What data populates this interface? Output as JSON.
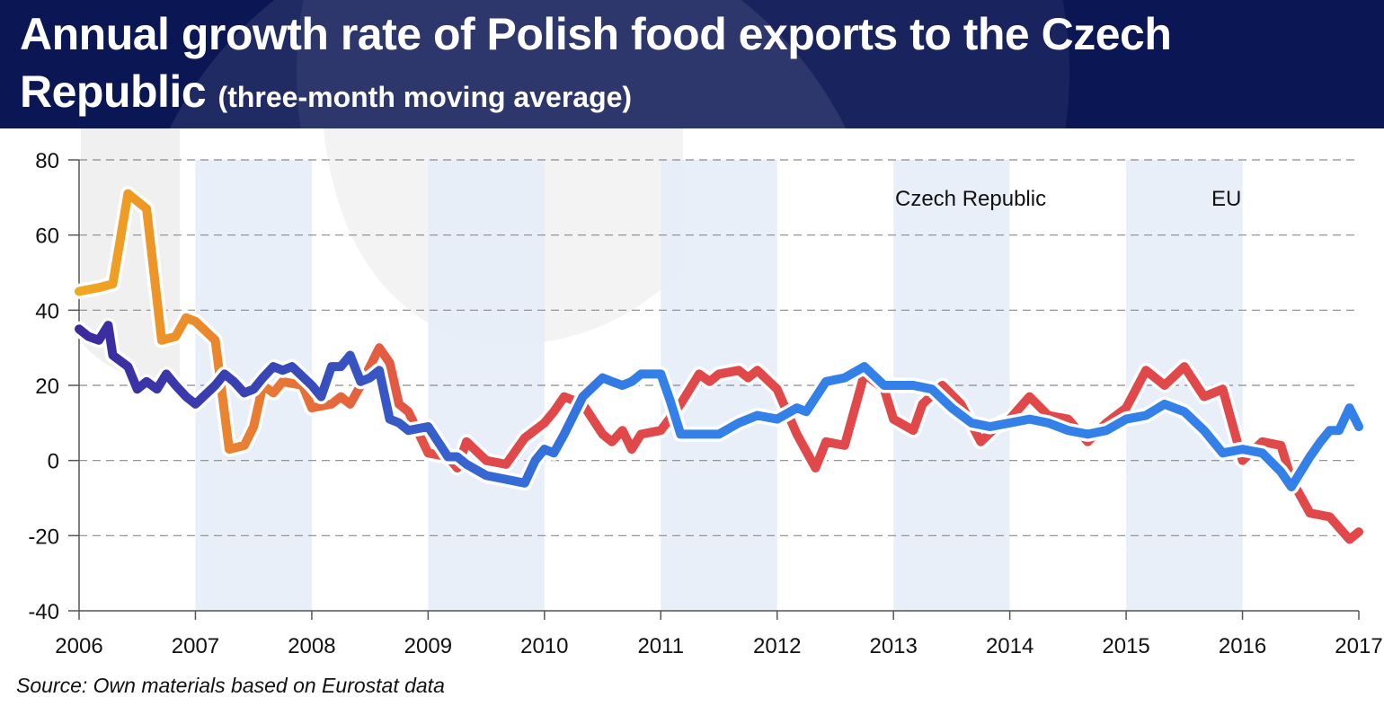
{
  "title": "Annual growth rate of Polish food exports to the Czech Republic",
  "subtitle": "(three-month moving average)",
  "source": "Source: Own materials based on Eurostat data",
  "colors": {
    "header_bg": "#0b1654",
    "band": "#e4ecf8",
    "czech_start": "#f0a81f",
    "czech_end": "#e0484a",
    "eu_start": "#3b2a9e",
    "eu_end": "#3380e8"
  },
  "chart_data": {
    "type": "line",
    "title": "Annual growth rate of Polish food exports to the Czech Republic",
    "subtitle": "(three-month moving average)",
    "xlabel": "",
    "ylabel": "",
    "xlim": [
      2006,
      2017
    ],
    "ylim": [
      -40,
      80
    ],
    "x_ticks": [
      "2006",
      "2007",
      "2008",
      "2009",
      "2010",
      "2011",
      "2012",
      "2013",
      "2014",
      "2015",
      "2016",
      "2017"
    ],
    "y_ticks": [
      "80",
      "60",
      "40",
      "20",
      "0",
      "-20",
      "-40"
    ],
    "shaded_years": [
      [
        2007,
        2008
      ],
      [
        2009,
        2010
      ],
      [
        2011,
        2012
      ],
      [
        2013,
        2014
      ],
      [
        2015,
        2016
      ]
    ],
    "grid": "horizontal dashed",
    "legend_position": "top-right",
    "series": [
      {
        "name": "Czech Republic",
        "x": [
          2006.0,
          2006.17,
          2006.29,
          2006.42,
          2006.5,
          2006.58,
          2006.71,
          2006.83,
          2006.92,
          2007.0,
          2007.17,
          2007.29,
          2007.42,
          2007.5,
          2007.58,
          2007.67,
          2007.75,
          2007.92,
          2008.0,
          2008.17,
          2008.25,
          2008.33,
          2008.42,
          2008.58,
          2008.67,
          2008.75,
          2008.83,
          2009.0,
          2009.17,
          2009.25,
          2009.33,
          2009.5,
          2009.67,
          2009.83,
          2010.0,
          2010.08,
          2010.17,
          2010.33,
          2010.5,
          2010.58,
          2010.67,
          2010.75,
          2010.83,
          2011.0,
          2011.17,
          2011.33,
          2011.42,
          2011.5,
          2011.67,
          2011.75,
          2011.83,
          2012.0,
          2012.17,
          2012.33,
          2012.42,
          2012.58,
          2012.75,
          2012.92,
          2013.0,
          2013.17,
          2013.25,
          2013.42,
          2013.58,
          2013.75,
          2013.92,
          2014.0,
          2014.17,
          2014.33,
          2014.5,
          2014.67,
          2014.83,
          2015.0,
          2015.17,
          2015.33,
          2015.5,
          2015.67,
          2015.83,
          2016.0,
          2016.17,
          2016.33,
          2016.42,
          2016.58,
          2016.75,
          2016.92,
          2017.0
        ],
        "values": [
          45,
          46,
          47,
          71,
          69,
          67,
          32,
          33,
          38,
          37,
          32,
          3,
          4,
          9,
          20,
          18,
          21,
          20,
          14,
          15,
          17,
          15,
          20,
          30,
          26,
          15,
          13,
          2,
          1,
          -2,
          5,
          0,
          -1,
          6,
          10,
          13,
          17,
          15,
          7,
          5,
          8,
          3,
          7,
          8,
          15,
          23,
          21,
          23,
          24,
          22,
          24,
          19,
          7,
          -2,
          5,
          4,
          23,
          19,
          11,
          8,
          15,
          20,
          15,
          5,
          10,
          11,
          17,
          12,
          11,
          5,
          10,
          14,
          24,
          20,
          25,
          17,
          19,
          0,
          5,
          4,
          -5,
          -14,
          -15,
          -21,
          -19
        ]
      },
      {
        "name": "EU",
        "x": [
          2006.0,
          2006.08,
          2006.17,
          2006.25,
          2006.29,
          2006.42,
          2006.5,
          2006.58,
          2006.67,
          2006.75,
          2006.83,
          2006.92,
          2007.0,
          2007.17,
          2007.25,
          2007.33,
          2007.42,
          2007.5,
          2007.58,
          2007.67,
          2007.75,
          2007.83,
          2008.0,
          2008.08,
          2008.17,
          2008.25,
          2008.33,
          2008.42,
          2008.5,
          2008.58,
          2008.67,
          2008.75,
          2008.83,
          2009.0,
          2009.17,
          2009.25,
          2009.33,
          2009.5,
          2009.67,
          2009.83,
          2009.92,
          2010.0,
          2010.08,
          2010.17,
          2010.33,
          2010.5,
          2010.58,
          2010.67,
          2010.75,
          2010.83,
          2011.0,
          2011.08,
          2011.17,
          2011.33,
          2011.42,
          2011.5,
          2011.67,
          2011.83,
          2012.0,
          2012.17,
          2012.25,
          2012.42,
          2012.58,
          2012.75,
          2012.92,
          2013.0,
          2013.17,
          2013.33,
          2013.5,
          2013.67,
          2013.83,
          2014.0,
          2014.17,
          2014.33,
          2014.5,
          2014.67,
          2014.83,
          2015.0,
          2015.17,
          2015.33,
          2015.5,
          2015.67,
          2015.83,
          2016.0,
          2016.17,
          2016.33,
          2016.42,
          2016.58,
          2016.67,
          2016.75,
          2016.83,
          2016.92,
          2017.0
        ],
        "values": [
          35,
          33,
          32,
          36,
          28,
          25,
          19,
          21,
          19,
          23,
          20,
          17,
          15,
          20,
          23,
          21,
          18,
          19,
          22,
          25,
          24,
          25,
          20,
          17,
          25,
          25,
          28,
          21,
          22,
          24,
          11,
          10,
          8,
          9,
          1,
          1,
          -1,
          -4,
          -5,
          -6,
          0,
          3,
          2,
          7,
          17,
          22,
          21,
          20,
          21,
          23,
          23,
          16,
          7,
          7,
          7,
          7,
          10,
          12,
          11,
          14,
          13,
          21,
          22,
          25,
          20,
          20,
          20,
          19,
          14,
          10,
          9,
          10,
          11,
          10,
          8,
          7,
          8,
          11,
          12,
          15,
          13,
          8,
          2,
          3,
          2,
          -3,
          -7,
          1,
          5,
          8,
          8,
          14,
          9
        ]
      }
    ]
  }
}
